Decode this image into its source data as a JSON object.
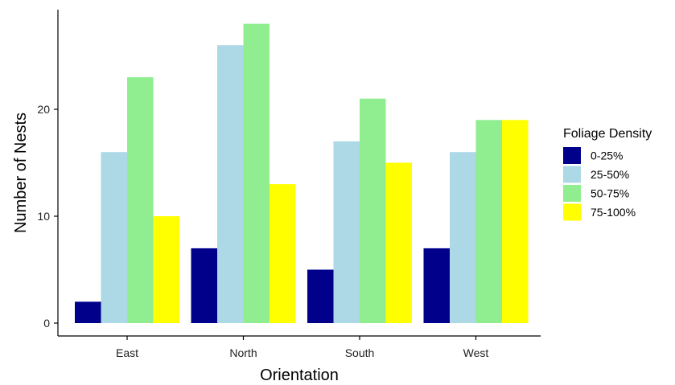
{
  "chart_data": {
    "type": "bar",
    "title": "",
    "xlabel": "Orientation",
    "ylabel": "Number of Nests",
    "categories": [
      "East",
      "North",
      "South",
      "West"
    ],
    "series": [
      {
        "name": "0-25%",
        "color": "#00008B",
        "values": [
          2,
          7,
          5,
          7
        ]
      },
      {
        "name": "25-50%",
        "color": "#ADD8E6",
        "values": [
          16,
          26,
          17,
          16
        ]
      },
      {
        "name": "50-75%",
        "color": "#90EE90",
        "values": [
          23,
          28,
          21,
          19
        ]
      },
      {
        "name": "75-100%",
        "color": "#FFFF00",
        "values": [
          10,
          13,
          15,
          19
        ]
      }
    ],
    "ylim": [
      0,
      29.5
    ],
    "yticks": [
      0,
      10,
      20
    ],
    "grid": false,
    "legend": {
      "title": "Foliage Density",
      "position": "right"
    }
  }
}
